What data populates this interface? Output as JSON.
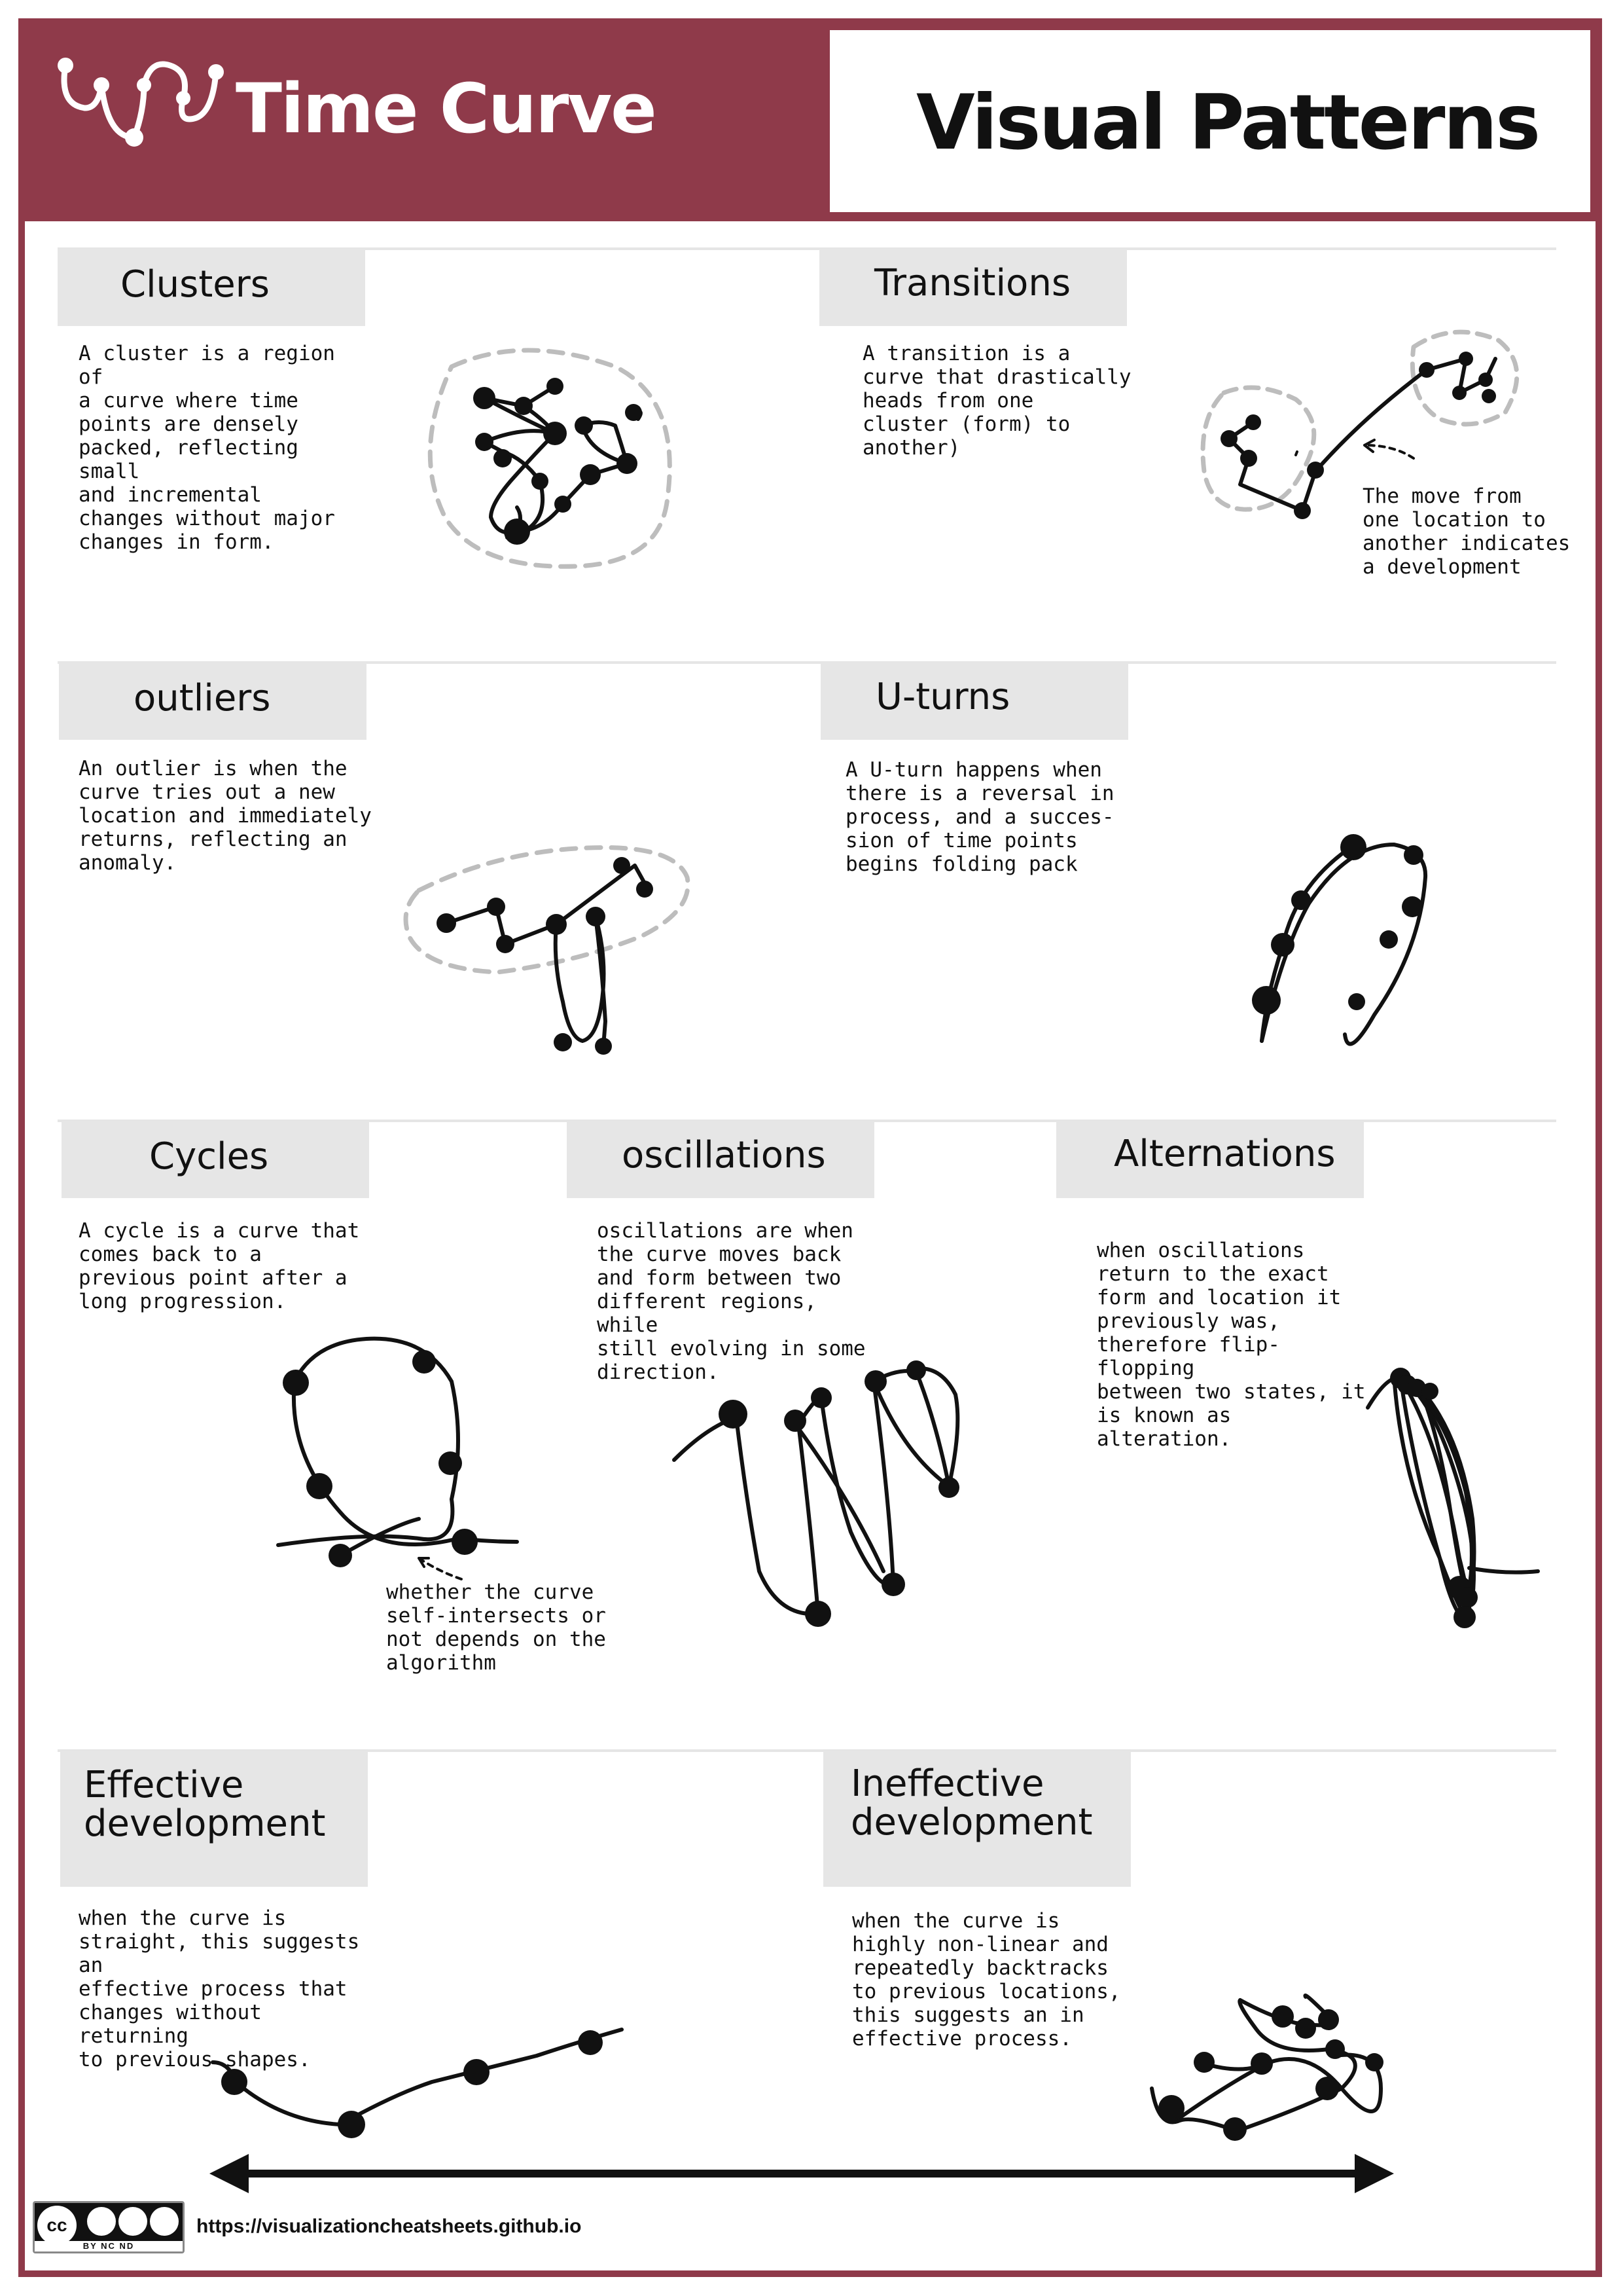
{
  "header": {
    "logo_text": "Time Curve",
    "title": "Visual Patterns"
  },
  "sections": {
    "clusters": {
      "title": "Clusters",
      "description": "A cluster is a region of\na curve where time\npoints are densely\npacked, reflecting small\nand incremental\nchanges without major\nchanges in form."
    },
    "transitions": {
      "title": "Transitions",
      "description": "A transition is a\ncurve that drastically\nheads from one\ncluster (form) to\nanother)",
      "annotation": "The move from\none location to\nanother indicates\na development"
    },
    "outliers": {
      "title": "outliers",
      "description": "An outlier is when the\ncurve tries out a new\nlocation and immediately\nreturns, reflecting an\nanomaly."
    },
    "u_turns": {
      "title": "U-turns",
      "description": "A U-turn happens when\nthere is a reversal in\nprocess, and a succes-\nsion of time points\nbegins folding pack"
    },
    "cycles": {
      "title": "Cycles",
      "description": "A cycle is a curve that\ncomes back to a\nprevious point after a\nlong progression.",
      "annotation": "whether the curve\nself-intersects or\nnot depends on the\nalgorithm"
    },
    "oscillations": {
      "title": "oscillations",
      "description": "oscillations are when\nthe curve moves back\nand form between two\ndifferent regions, while\nstill evolving in some\ndirection."
    },
    "alternations": {
      "title": "Alternations",
      "description": "when oscillations\nreturn to the exact\nform and location it\npreviously was,\ntherefore flip-flopping\nbetween two states, it\nis known as alteration."
    },
    "effective": {
      "title": "Effective\ndevelopment",
      "description": "when the curve is\nstraight, this suggests an\neffective process that\nchanges without returning\nto previous shapes."
    },
    "ineffective": {
      "title": "Ineffective\ndevelopment",
      "description": "when the curve is\nhighly non-linear and\nrepeatedly backtracks\nto previous locations,\nthis suggests an in\neffective process."
    }
  },
  "footer": {
    "url": "https://visualizationcheatsheets.github.io",
    "license_main": "cc",
    "license_terms": "BY  NC  ND"
  },
  "colors": {
    "brand": "#8f3a4a",
    "label_bg": "#e6e6e6",
    "ink": "#111111",
    "dashed": "#bdbdbd"
  },
  "icons": [
    "time-curve-logo-icon",
    "double-arrow-icon",
    "creative-commons-icon"
  ]
}
